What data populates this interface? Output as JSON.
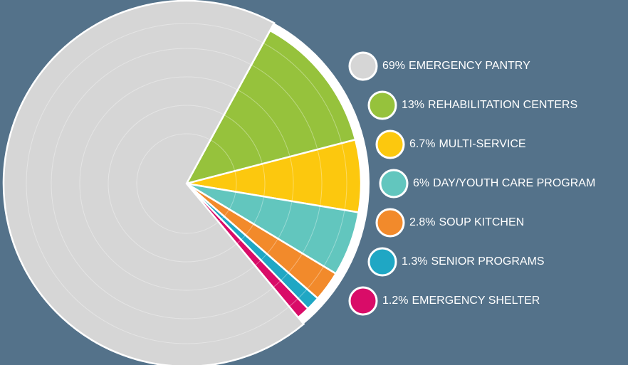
{
  "chart_data": {
    "type": "pie",
    "categories": [
      "EMERGENCY PANTRY",
      "REHABILITATION CENTERS",
      "MULTI-SERVICE",
      "DAY/YOUTH CARE PROGRAM",
      "SOUP KITCHEN",
      "SENIOR PROGRAMS",
      "EMERGENCY SHELTER"
    ],
    "values": [
      69,
      13,
      6.7,
      6,
      2.8,
      1.3,
      1.2
    ],
    "value_labels": [
      "69%",
      "13%",
      "6.7%",
      "6%",
      "2.8%",
      "1.3%",
      "1.2%"
    ],
    "colors": [
      "#d6d6d6",
      "#96c23c",
      "#fcc80e",
      "#62c6be",
      "#f28a2b",
      "#1fa7c4",
      "#d90c68"
    ]
  }
}
